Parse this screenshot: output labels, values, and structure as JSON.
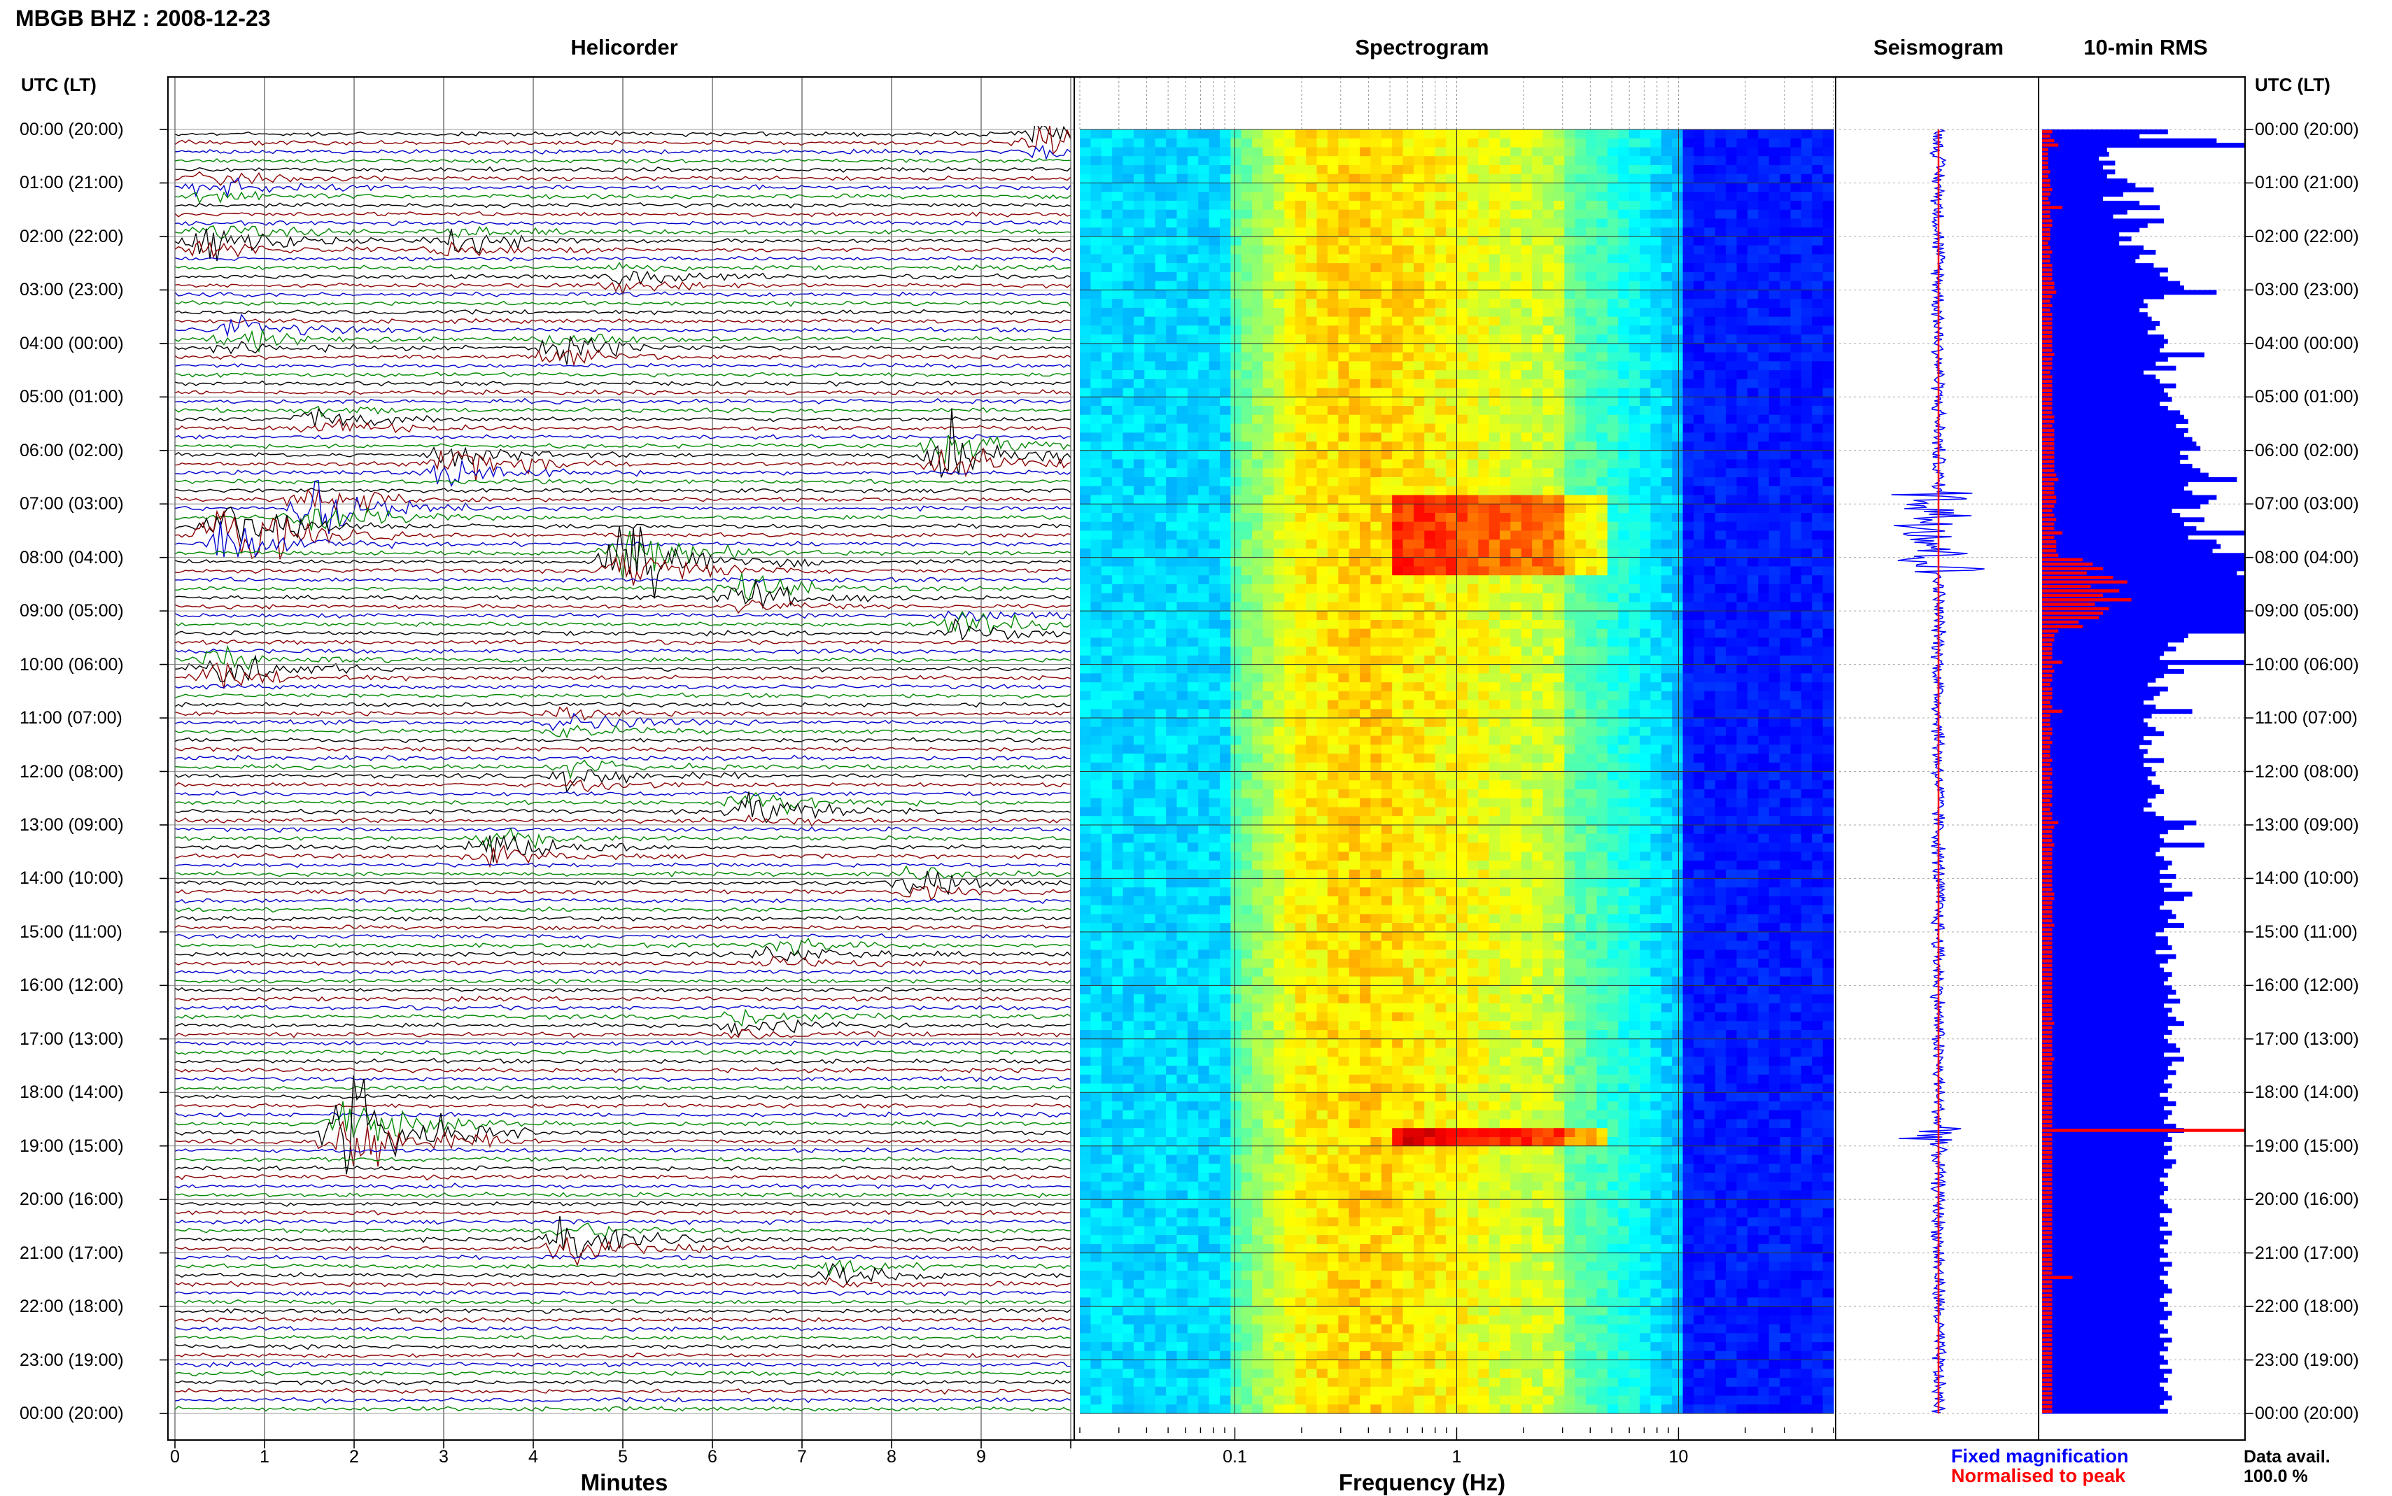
{
  "header": {
    "title": "MBGB BHZ : 2008-12-23",
    "utc_label_left": "UTC (LT)",
    "utc_label_right": "UTC (LT)"
  },
  "panels": {
    "helicorder": "Helicorder",
    "spectrogram": "Spectrogram",
    "seismogram": "Seismogram",
    "rms": "10-min RMS"
  },
  "axes": {
    "minutes_label": "Minutes",
    "minutes_ticks": [
      "0",
      "1",
      "2",
      "3",
      "4",
      "5",
      "6",
      "7",
      "8",
      "9"
    ],
    "frequency_label": "Frequency (Hz)",
    "frequency_ticks": [
      "0.1",
      "1",
      "10"
    ]
  },
  "time_labels": [
    "00:00 (20:00)",
    "01:00 (21:00)",
    "02:00 (22:00)",
    "03:00 (23:00)",
    "04:00 (00:00)",
    "05:00 (01:00)",
    "06:00 (02:00)",
    "07:00 (03:00)",
    "08:00 (04:00)",
    "09:00 (05:00)",
    "10:00 (06:00)",
    "11:00 (07:00)",
    "12:00 (08:00)",
    "13:00 (09:00)",
    "14:00 (10:00)",
    "15:00 (11:00)",
    "16:00 (12:00)",
    "17:00 (13:00)",
    "18:00 (14:00)",
    "19:00 (15:00)",
    "20:00 (16:00)",
    "21:00 (17:00)",
    "22:00 (18:00)",
    "23:00 (19:00)",
    "00:00 (20:00)"
  ],
  "legend": {
    "fixed": "Fixed magnification",
    "normalised": "Normalised to peak",
    "data_avail_label": "Data avail.",
    "data_avail_value": "100.0 %"
  },
  "colors": {
    "trace_cycle": [
      "#000000",
      "#8b0000",
      "#0000cc",
      "#008800"
    ],
    "fixed": "#0000ff",
    "normalised": "#ff0000",
    "grid": "#444444"
  },
  "chart_data": {
    "type": "helicorder",
    "station": "MBGB",
    "channel": "BHZ",
    "date": "2008-12-23",
    "helicorder": {
      "x_range_minutes": [
        0,
        10
      ],
      "rows_per_hour": 6,
      "hours": 24,
      "events": [
        {
          "hour": 0.1,
          "minute": 9.6,
          "amp": 1.8
        },
        {
          "hour": 1.0,
          "minute": 0.3,
          "amp": 1.0
        },
        {
          "hour": 2.0,
          "minute": 0.3,
          "amp": 1.8
        },
        {
          "hour": 2.0,
          "minute": 3.0,
          "amp": 1.2
        },
        {
          "hour": 2.7,
          "minute": 5.0,
          "amp": 1.0
        },
        {
          "hour": 3.8,
          "minute": 0.6,
          "amp": 1.6
        },
        {
          "hour": 4.0,
          "minute": 4.2,
          "amp": 1.2
        },
        {
          "hour": 5.4,
          "minute": 1.5,
          "amp": 1.2
        },
        {
          "hour": 6.0,
          "minute": 8.6,
          "amp": 2.8
        },
        {
          "hour": 6.2,
          "minute": 3.0,
          "amp": 2.0
        },
        {
          "hour": 7.0,
          "minute": 1.5,
          "amp": 3.0
        },
        {
          "hour": 7.5,
          "minute": 0.5,
          "amp": 4.0
        },
        {
          "hour": 8.0,
          "minute": 5.0,
          "amp": 4.0
        },
        {
          "hour": 8.6,
          "minute": 6.3,
          "amp": 1.8
        },
        {
          "hour": 9.2,
          "minute": 8.7,
          "amp": 1.6
        },
        {
          "hour": 10.0,
          "minute": 0.4,
          "amp": 2.0
        },
        {
          "hour": 11.0,
          "minute": 4.3,
          "amp": 1.0
        },
        {
          "hour": 12.0,
          "minute": 4.4,
          "amp": 1.2
        },
        {
          "hour": 12.6,
          "minute": 6.4,
          "amp": 1.8
        },
        {
          "hour": 13.3,
          "minute": 3.5,
          "amp": 1.8
        },
        {
          "hour": 14.0,
          "minute": 8.2,
          "amp": 1.0
        },
        {
          "hour": 15.3,
          "minute": 6.7,
          "amp": 1.1
        },
        {
          "hour": 16.6,
          "minute": 6.3,
          "amp": 1.3
        },
        {
          "hour": 18.7,
          "minute": 1.9,
          "amp": 6.0
        },
        {
          "hour": 20.7,
          "minute": 4.3,
          "amp": 2.0
        },
        {
          "hour": 21.3,
          "minute": 7.3,
          "amp": 0.9
        }
      ]
    },
    "spectrogram": {
      "x_scale": "log",
      "x_range_hz": [
        0.02,
        50
      ],
      "ticks_hz": [
        0.1,
        1,
        10
      ],
      "colormap": "jet"
    },
    "seismogram": {
      "series": [
        {
          "name": "Fixed magnification"
        },
        {
          "name": "Normalised to peak"
        }
      ]
    },
    "rms_10min": {
      "fixed_magnification": [
        0.62,
        0.48,
        0.86,
        1.0,
        0.32,
        0.33,
        0.28,
        0.36,
        0.3,
        0.36,
        0.32,
        0.42,
        0.46,
        0.55,
        0.4,
        0.3,
        0.48,
        0.58,
        0.42,
        0.35,
        0.6,
        0.52,
        0.48,
        0.38,
        0.44,
        0.38,
        0.5,
        0.56,
        0.48,
        0.46,
        0.55,
        0.62,
        0.58,
        0.62,
        0.68,
        0.7,
        0.86,
        0.6,
        0.5,
        0.52,
        0.48,
        0.52,
        0.54,
        0.58,
        0.56,
        0.52,
        0.6,
        0.62,
        0.6,
        0.58,
        0.8,
        0.62,
        0.56,
        0.66,
        0.5,
        0.56,
        0.58,
        0.66,
        0.6,
        0.62,
        0.64,
        0.58,
        0.62,
        0.68,
        0.7,
        0.72,
        0.66,
        0.72,
        0.7,
        0.74,
        0.76,
        0.78,
        0.68,
        0.72,
        0.68,
        0.74,
        0.78,
        0.82,
        0.96,
        0.72,
        0.7,
        0.74,
        0.86,
        0.82,
        0.78,
        0.64,
        0.68,
        0.8,
        0.7,
        0.76,
        1.0,
        0.72,
        0.86,
        0.88,
        0.84,
        1.0,
        1.0,
        1.0,
        1.0,
        0.96,
        1.0,
        1.0,
        1.0,
        1.0,
        1.0,
        1.0,
        1.0,
        1.0,
        1.0,
        1.0,
        1.0,
        1.0,
        1.0,
        0.72,
        0.7,
        0.62,
        0.66,
        0.6,
        0.58,
        1.0,
        0.62,
        0.7,
        0.6,
        0.56,
        0.52,
        0.62,
        0.58,
        0.55,
        0.5,
        0.56,
        0.74,
        0.54,
        0.5,
        0.52,
        0.56,
        0.6,
        0.5,
        0.54,
        0.48,
        0.52,
        0.5,
        0.6,
        0.5,
        0.54,
        0.56,
        0.52,
        0.54,
        0.58,
        0.6,
        0.56,
        0.52,
        0.54,
        0.5,
        0.56,
        0.6,
        0.76,
        0.7,
        0.62,
        0.58,
        0.6,
        0.8,
        0.58,
        0.56,
        0.6,
        0.64,
        0.62,
        0.58,
        0.66,
        0.58,
        0.64,
        0.6,
        0.74,
        0.7,
        0.6,
        0.58,
        0.64,
        0.66,
        0.62,
        0.7,
        0.6,
        0.56,
        0.62,
        0.62,
        0.64,
        0.56,
        0.66,
        0.62,
        0.58,
        0.6,
        0.64,
        0.62,
        0.6,
        0.64,
        0.66,
        0.62,
        0.68,
        0.6,
        0.64,
        0.62,
        0.66,
        0.7,
        0.62,
        0.64,
        0.6,
        0.62,
        0.66,
        0.68,
        0.6,
        0.7,
        0.64,
        0.62,
        0.66,
        0.62,
        0.6,
        0.64,
        0.62,
        0.58,
        0.62,
        0.66,
        0.6,
        0.64,
        0.62,
        0.6,
        0.66,
        0.7,
        0.62,
        0.64,
        0.6,
        0.64,
        0.62,
        0.6,
        0.66,
        0.64,
        0.6,
        0.62,
        0.58,
        0.6,
        0.62,
        0.6,
        0.58,
        0.6,
        0.62,
        0.64,
        0.58,
        0.6,
        0.62,
        0.58,
        0.64,
        0.6,
        0.62,
        0.58,
        0.6,
        0.62,
        0.58,
        0.64,
        0.6,
        0.62,
        0.58,
        0.6,
        0.62,
        0.64,
        0.6,
        0.58,
        0.62,
        0.6,
        0.64,
        0.62,
        0.58,
        0.6,
        0.62,
        0.58,
        0.64,
        0.6,
        0.62,
        0.58,
        0.6,
        0.62,
        0.58,
        0.64,
        0.6,
        0.62,
        0.58,
        0.6,
        0.62,
        0.64,
        0.6,
        0.58,
        0.62
      ],
      "normalised_to_peak": [
        0.05,
        0.04,
        0.06,
        0.08,
        0.03,
        0.03,
        0.03,
        0.03,
        0.03,
        0.04,
        0.03,
        0.04,
        0.04,
        0.05,
        0.04,
        0.03,
        0.04,
        0.1,
        0.04,
        0.04,
        0.05,
        0.05,
        0.04,
        0.04,
        0.04,
        0.03,
        0.04,
        0.05,
        0.04,
        0.04,
        0.05,
        0.05,
        0.05,
        0.05,
        0.06,
        0.06,
        0.07,
        0.05,
        0.04,
        0.05,
        0.04,
        0.05,
        0.05,
        0.05,
        0.05,
        0.05,
        0.05,
        0.05,
        0.05,
        0.05,
        0.06,
        0.05,
        0.05,
        0.05,
        0.04,
        0.05,
        0.05,
        0.05,
        0.05,
        0.05,
        0.05,
        0.05,
        0.05,
        0.05,
        0.06,
        0.06,
        0.05,
        0.06,
        0.06,
        0.06,
        0.06,
        0.06,
        0.06,
        0.06,
        0.06,
        0.06,
        0.06,
        0.07,
        0.08,
        0.06,
        0.06,
        0.06,
        0.07,
        0.07,
        0.06,
        0.05,
        0.06,
        0.07,
        0.06,
        0.06,
        0.1,
        0.06,
        0.07,
        0.07,
        0.07,
        0.08,
        0.2,
        0.25,
        0.3,
        0.22,
        0.35,
        0.42,
        0.24,
        0.38,
        0.3,
        0.44,
        0.26,
        0.33,
        0.3,
        0.28,
        0.18,
        0.2,
        0.08,
        0.06,
        0.06,
        0.05,
        0.05,
        0.05,
        0.05,
        0.1,
        0.05,
        0.06,
        0.05,
        0.05,
        0.04,
        0.05,
        0.05,
        0.05,
        0.04,
        0.05,
        0.1,
        0.04,
        0.04,
        0.04,
        0.05,
        0.05,
        0.04,
        0.05,
        0.04,
        0.04,
        0.04,
        0.05,
        0.04,
        0.05,
        0.05,
        0.04,
        0.05,
        0.05,
        0.05,
        0.05,
        0.04,
        0.05,
        0.04,
        0.05,
        0.05,
        0.08,
        0.06,
        0.05,
        0.05,
        0.05,
        0.06,
        0.05,
        0.05,
        0.05,
        0.05,
        0.05,
        0.05,
        0.05,
        0.05,
        0.05,
        0.05,
        0.06,
        0.06,
        0.05,
        0.05,
        0.05,
        0.05,
        0.05,
        0.06,
        0.05,
        0.05,
        0.05,
        0.05,
        0.05,
        0.05,
        0.05,
        0.05,
        0.05,
        0.05,
        0.05,
        0.05,
        0.05,
        0.05,
        0.05,
        0.05,
        0.05,
        0.05,
        0.05,
        0.05,
        0.05,
        0.06,
        0.05,
        0.05,
        0.05,
        0.05,
        0.05,
        0.05,
        0.05,
        0.06,
        0.05,
        0.05,
        0.05,
        0.05,
        0.05,
        0.05,
        0.05,
        0.05,
        0.05,
        0.05,
        0.05,
        0.05,
        0.05,
        0.05,
        0.05,
        1.0,
        0.05,
        0.05,
        0.05,
        0.05,
        0.05,
        0.05,
        0.05,
        0.05,
        0.05,
        0.05,
        0.05,
        0.05,
        0.05,
        0.05,
        0.05,
        0.05,
        0.05,
        0.05,
        0.05,
        0.05,
        0.05,
        0.05,
        0.05,
        0.05,
        0.05,
        0.05,
        0.05,
        0.05,
        0.05,
        0.05,
        0.05,
        0.05,
        0.15,
        0.05,
        0.05,
        0.05,
        0.05,
        0.05,
        0.05,
        0.05,
        0.05,
        0.05,
        0.05,
        0.05,
        0.05,
        0.05,
        0.05,
        0.05,
        0.05,
        0.05,
        0.05,
        0.05,
        0.05,
        0.05,
        0.05,
        0.05,
        0.05,
        0.05,
        0.05,
        0.05,
        0.05,
        0.05,
        0.05
      ]
    }
  }
}
